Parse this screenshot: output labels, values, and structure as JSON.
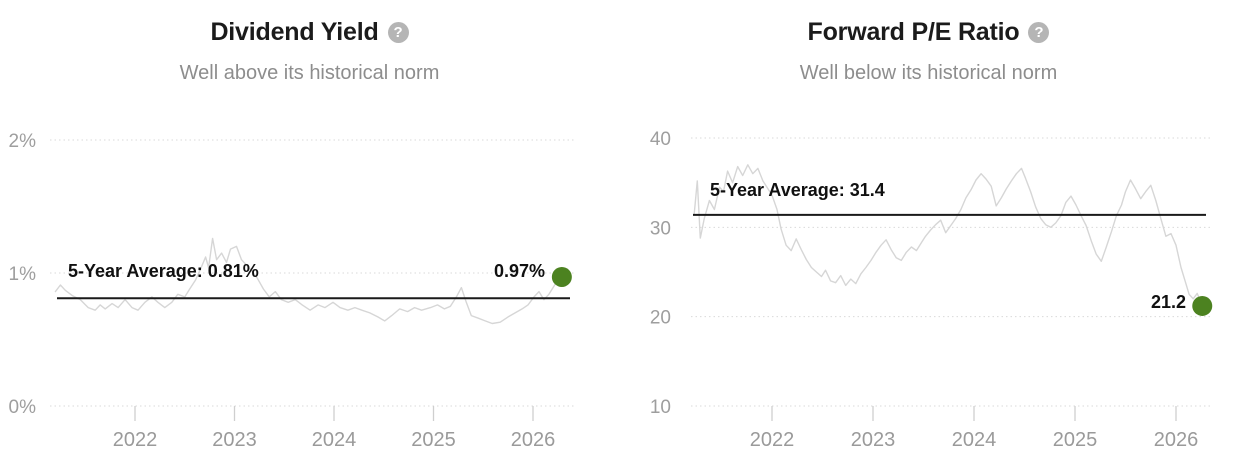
{
  "colors": {
    "accent_green": "#4c8220",
    "series_line": "#d6d6d6",
    "grid_dotted": "#dadada",
    "tick": "#cfcfcf",
    "average_line": "#1a1a1a",
    "title_text": "#1b1b1b",
    "subtitle_text": "#8d8d8d",
    "axis_text": "#9a9a9a",
    "help_icon_bg": "#b5b5b5"
  },
  "chart_data": [
    {
      "type": "line",
      "title": "Dividend Yield",
      "subtitle": "Well above its historical norm",
      "help_icon": "question-mark-icon",
      "avg_label": "5-Year Average: 0.81%",
      "current_label": "0.97%",
      "average_5y": 0.81,
      "current_value": 0.97,
      "unit": "%",
      "ylim": [
        0,
        2
      ],
      "y_ticks": [
        {
          "value": 0,
          "label": "0%"
        },
        {
          "value": 1,
          "label": "1%"
        },
        {
          "value": 2,
          "label": "2%"
        }
      ],
      "x_ticks": [
        {
          "value": 2022,
          "label": "2022"
        },
        {
          "value": 2023,
          "label": "2023"
        },
        {
          "value": 2024,
          "label": "2024"
        },
        {
          "value": 2025,
          "label": "2025"
        },
        {
          "value": 2026,
          "label": "2026"
        }
      ],
      "x_range": [
        2021.2,
        2026.42
      ],
      "grid": "horizontal-dotted",
      "legend": "none",
      "series": [
        {
          "name": "Dividend Yield",
          "points": [
            [
              2021.2,
              0.86
            ],
            [
              2021.25,
              0.91
            ],
            [
              2021.3,
              0.87
            ],
            [
              2021.37,
              0.83
            ],
            [
              2021.45,
              0.8
            ],
            [
              2021.53,
              0.74
            ],
            [
              2021.6,
              0.72
            ],
            [
              2021.65,
              0.76
            ],
            [
              2021.7,
              0.73
            ],
            [
              2021.77,
              0.77
            ],
            [
              2021.83,
              0.74
            ],
            [
              2021.9,
              0.8
            ],
            [
              2021.97,
              0.74
            ],
            [
              2022.03,
              0.72
            ],
            [
              2022.1,
              0.78
            ],
            [
              2022.17,
              0.82
            ],
            [
              2022.23,
              0.78
            ],
            [
              2022.3,
              0.74
            ],
            [
              2022.37,
              0.78
            ],
            [
              2022.43,
              0.84
            ],
            [
              2022.5,
              0.82
            ],
            [
              2022.55,
              0.88
            ],
            [
              2022.61,
              0.95
            ],
            [
              2022.67,
              1.05
            ],
            [
              2022.71,
              1.12
            ],
            [
              2022.74,
              1.04
            ],
            [
              2022.78,
              1.26
            ],
            [
              2022.82,
              1.1
            ],
            [
              2022.87,
              1.15
            ],
            [
              2022.92,
              1.08
            ],
            [
              2022.96,
              1.18
            ],
            [
              2023.02,
              1.2
            ],
            [
              2023.07,
              1.1
            ],
            [
              2023.12,
              1.06
            ],
            [
              2023.17,
              1.02
            ],
            [
              2023.23,
              0.96
            ],
            [
              2023.29,
              0.88
            ],
            [
              2023.35,
              0.82
            ],
            [
              2023.41,
              0.86
            ],
            [
              2023.47,
              0.8
            ],
            [
              2023.54,
              0.78
            ],
            [
              2023.61,
              0.8
            ],
            [
              2023.68,
              0.76
            ],
            [
              2023.76,
              0.72
            ],
            [
              2023.84,
              0.76
            ],
            [
              2023.91,
              0.74
            ],
            [
              2023.99,
              0.78
            ],
            [
              2024.06,
              0.74
            ],
            [
              2024.14,
              0.72
            ],
            [
              2024.21,
              0.74
            ],
            [
              2024.28,
              0.72
            ],
            [
              2024.36,
              0.7
            ],
            [
              2024.44,
              0.67
            ],
            [
              2024.51,
              0.64
            ],
            [
              2024.58,
              0.68
            ],
            [
              2024.66,
              0.73
            ],
            [
              2024.74,
              0.71
            ],
            [
              2024.81,
              0.74
            ],
            [
              2024.88,
              0.72
            ],
            [
              2024.97,
              0.74
            ],
            [
              2025.04,
              0.76
            ],
            [
              2025.11,
              0.73
            ],
            [
              2025.17,
              0.75
            ],
            [
              2025.23,
              0.82
            ],
            [
              2025.28,
              0.89
            ],
            [
              2025.33,
              0.78
            ],
            [
              2025.38,
              0.68
            ],
            [
              2025.45,
              0.66
            ],
            [
              2025.52,
              0.64
            ],
            [
              2025.59,
              0.62
            ],
            [
              2025.67,
              0.63
            ],
            [
              2025.75,
              0.67
            ],
            [
              2025.82,
              0.7
            ],
            [
              2025.89,
              0.73
            ],
            [
              2025.95,
              0.76
            ],
            [
              2026.01,
              0.82
            ],
            [
              2026.06,
              0.86
            ],
            [
              2026.11,
              0.8
            ],
            [
              2026.16,
              0.84
            ],
            [
              2026.21,
              0.9
            ],
            [
              2026.25,
              0.95
            ],
            [
              2026.29,
              0.97
            ]
          ]
        }
      ]
    },
    {
      "type": "line",
      "title": "Forward P/E Ratio",
      "subtitle": "Well below its historical norm",
      "help_icon": "question-mark-icon",
      "avg_label": "5-Year Average: 31.4",
      "current_label": "21.2",
      "average_5y": 31.4,
      "current_value": 21.2,
      "unit": "",
      "ylim": [
        10,
        40
      ],
      "y_ticks": [
        {
          "value": 10,
          "label": "10"
        },
        {
          "value": 20,
          "label": "20"
        },
        {
          "value": 30,
          "label": "30"
        },
        {
          "value": 40,
          "label": "40"
        }
      ],
      "x_ticks": [
        {
          "value": 2022,
          "label": "2022"
        },
        {
          "value": 2023,
          "label": "2023"
        },
        {
          "value": 2024,
          "label": "2024"
        },
        {
          "value": 2025,
          "label": "2025"
        },
        {
          "value": 2026,
          "label": "2026"
        }
      ],
      "x_range": [
        2021.23,
        2026.34
      ],
      "grid": "horizontal-dotted",
      "legend": "none",
      "series": [
        {
          "name": "Forward P/E Ratio",
          "points": [
            [
              2021.23,
              31.5
            ],
            [
              2021.26,
              35.2
            ],
            [
              2021.29,
              28.8
            ],
            [
              2021.33,
              31.0
            ],
            [
              2021.38,
              33.0
            ],
            [
              2021.43,
              32.0
            ],
            [
              2021.48,
              34.5
            ],
            [
              2021.52,
              34.0
            ],
            [
              2021.56,
              36.3
            ],
            [
              2021.61,
              35.0
            ],
            [
              2021.66,
              36.8
            ],
            [
              2021.71,
              35.8
            ],
            [
              2021.76,
              37.0
            ],
            [
              2021.81,
              36.0
            ],
            [
              2021.86,
              36.6
            ],
            [
              2021.91,
              35.2
            ],
            [
              2021.96,
              34.3
            ],
            [
              2022.0,
              33.6
            ],
            [
              2022.05,
              32.0
            ],
            [
              2022.09,
              29.8
            ],
            [
              2022.14,
              28.0
            ],
            [
              2022.19,
              27.4
            ],
            [
              2022.24,
              28.7
            ],
            [
              2022.29,
              27.5
            ],
            [
              2022.34,
              26.4
            ],
            [
              2022.39,
              25.5
            ],
            [
              2022.44,
              25.0
            ],
            [
              2022.49,
              24.5
            ],
            [
              2022.53,
              25.2
            ],
            [
              2022.58,
              24.0
            ],
            [
              2022.63,
              23.8
            ],
            [
              2022.68,
              24.6
            ],
            [
              2022.73,
              23.5
            ],
            [
              2022.78,
              24.2
            ],
            [
              2022.83,
              23.7
            ],
            [
              2022.88,
              24.8
            ],
            [
              2022.93,
              25.5
            ],
            [
              2022.98,
              26.3
            ],
            [
              2023.03,
              27.2
            ],
            [
              2023.08,
              28.0
            ],
            [
              2023.13,
              28.6
            ],
            [
              2023.18,
              27.5
            ],
            [
              2023.23,
              26.6
            ],
            [
              2023.28,
              26.3
            ],
            [
              2023.33,
              27.2
            ],
            [
              2023.38,
              27.8
            ],
            [
              2023.43,
              27.4
            ],
            [
              2023.48,
              28.3
            ],
            [
              2023.52,
              29.0
            ],
            [
              2023.57,
              29.7
            ],
            [
              2023.62,
              30.3
            ],
            [
              2023.67,
              30.8
            ],
            [
              2023.72,
              29.4
            ],
            [
              2023.77,
              30.2
            ],
            [
              2023.82,
              31.0
            ],
            [
              2023.87,
              32.0
            ],
            [
              2023.92,
              33.3
            ],
            [
              2023.97,
              34.2
            ],
            [
              2024.02,
              35.3
            ],
            [
              2024.07,
              36.0
            ],
            [
              2024.12,
              35.4
            ],
            [
              2024.17,
              34.6
            ],
            [
              2024.22,
              32.4
            ],
            [
              2024.27,
              33.3
            ],
            [
              2024.32,
              34.3
            ],
            [
              2024.37,
              35.2
            ],
            [
              2024.42,
              36.0
            ],
            [
              2024.47,
              36.6
            ],
            [
              2024.51,
              35.5
            ],
            [
              2024.56,
              34.0
            ],
            [
              2024.61,
              32.3
            ],
            [
              2024.66,
              31.0
            ],
            [
              2024.71,
              30.3
            ],
            [
              2024.76,
              30.0
            ],
            [
              2024.81,
              30.5
            ],
            [
              2024.86,
              31.3
            ],
            [
              2024.91,
              32.8
            ],
            [
              2024.96,
              33.5
            ],
            [
              2025.01,
              32.5
            ],
            [
              2025.06,
              31.3
            ],
            [
              2025.11,
              30.2
            ],
            [
              2025.16,
              28.5
            ],
            [
              2025.21,
              27.0
            ],
            [
              2025.26,
              26.2
            ],
            [
              2025.31,
              27.8
            ],
            [
              2025.36,
              29.5
            ],
            [
              2025.41,
              31.3
            ],
            [
              2025.46,
              32.5
            ],
            [
              2025.5,
              34.0
            ],
            [
              2025.55,
              35.3
            ],
            [
              2025.6,
              34.3
            ],
            [
              2025.65,
              33.2
            ],
            [
              2025.7,
              34.0
            ],
            [
              2025.75,
              34.7
            ],
            [
              2025.8,
              33.0
            ],
            [
              2025.85,
              31.0
            ],
            [
              2025.9,
              29.0
            ],
            [
              2025.95,
              29.3
            ],
            [
              2026.0,
              28.0
            ],
            [
              2026.05,
              25.5
            ],
            [
              2026.09,
              24.0
            ],
            [
              2026.13,
              22.5
            ],
            [
              2026.17,
              22.0
            ],
            [
              2026.21,
              22.6
            ],
            [
              2026.26,
              21.2
            ]
          ]
        }
      ]
    }
  ]
}
